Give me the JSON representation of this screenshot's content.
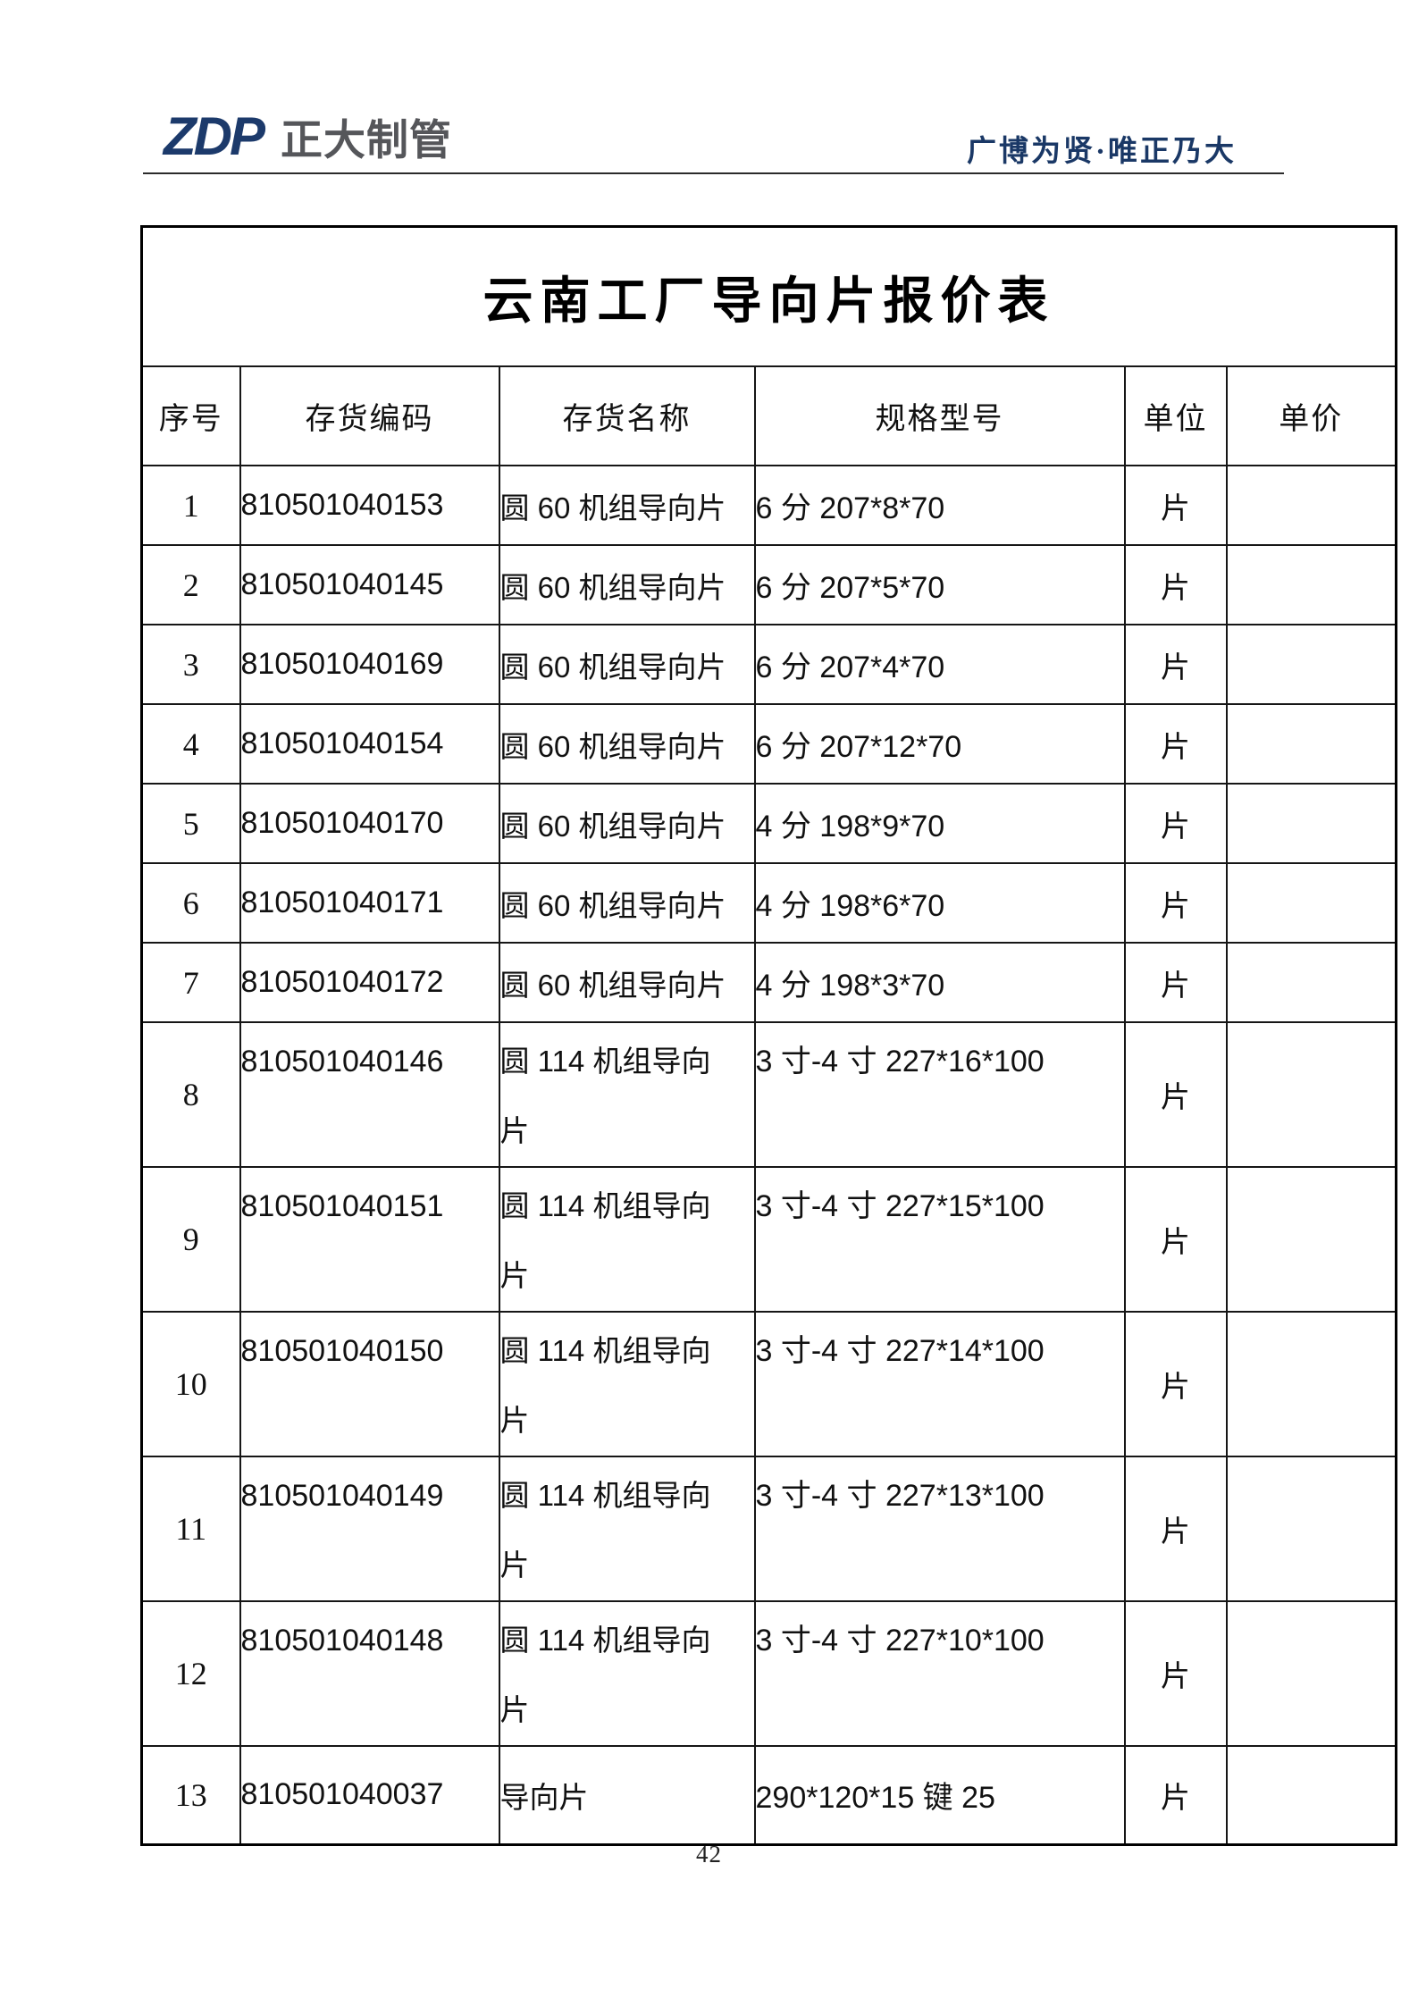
{
  "header": {
    "logo_zdp": "ZDP",
    "logo_name": "正大制管",
    "slogan": "广博为贤·唯正乃大"
  },
  "table": {
    "title": "云南工厂导向片报价表",
    "columns": [
      "序号",
      "存货编码",
      "存货名称",
      "规格型号",
      "单位",
      "单价"
    ],
    "rows": [
      {
        "no": "1",
        "code": "810501040153",
        "name": "圆 60 机组导向片",
        "spec": "6 分 207*8*70",
        "unit": "片",
        "price": ""
      },
      {
        "no": "2",
        "code": "810501040145",
        "name": "圆 60 机组导向片",
        "spec": "6 分 207*5*70",
        "unit": "片",
        "price": ""
      },
      {
        "no": "3",
        "code": "810501040169",
        "name": "圆 60 机组导向片",
        "spec": "6 分 207*4*70",
        "unit": "片",
        "price": ""
      },
      {
        "no": "4",
        "code": "810501040154",
        "name": "圆 60 机组导向片",
        "spec": "6 分 207*12*70",
        "unit": "片",
        "price": ""
      },
      {
        "no": "5",
        "code": "810501040170",
        "name": "圆 60 机组导向片",
        "spec": "4 分 198*9*70",
        "unit": "片",
        "price": ""
      },
      {
        "no": "6",
        "code": "810501040171",
        "name": "圆 60 机组导向片",
        "spec": "4 分 198*6*70",
        "unit": "片",
        "price": ""
      },
      {
        "no": "7",
        "code": "810501040172",
        "name": "圆 60 机组导向片",
        "spec": "4 分 198*3*70",
        "unit": "片",
        "price": ""
      },
      {
        "no": "8",
        "code": "810501040146",
        "name": "圆 114 机组导向\n片",
        "spec": "3 寸-4 寸 227*16*100",
        "unit": "片",
        "price": ""
      },
      {
        "no": "9",
        "code": "810501040151",
        "name": "圆 114 机组导向\n片",
        "spec": "3 寸-4 寸 227*15*100",
        "unit": "片",
        "price": ""
      },
      {
        "no": "10",
        "code": "810501040150",
        "name": "圆 114 机组导向\n片",
        "spec": "3 寸-4 寸 227*14*100",
        "unit": "片",
        "price": ""
      },
      {
        "no": "11",
        "code": "810501040149",
        "name": "圆 114 机组导向\n片",
        "spec": "3 寸-4 寸 227*13*100",
        "unit": "片",
        "price": ""
      },
      {
        "no": "12",
        "code": "810501040148",
        "name": "圆 114 机组导向\n片",
        "spec": "3 寸-4 寸 227*10*100",
        "unit": "片",
        "price": ""
      },
      {
        "no": "13",
        "code": "810501040037",
        "name": "导向片",
        "spec": "290*120*15 键 25",
        "unit": "片",
        "price": ""
      }
    ]
  },
  "footer": {
    "page_number": "42"
  },
  "colors": {
    "logo_blue": "#1c3a6b",
    "logo_gray": "#55565a",
    "slogan_blue": "#1a3866",
    "line_black": "#161616"
  }
}
